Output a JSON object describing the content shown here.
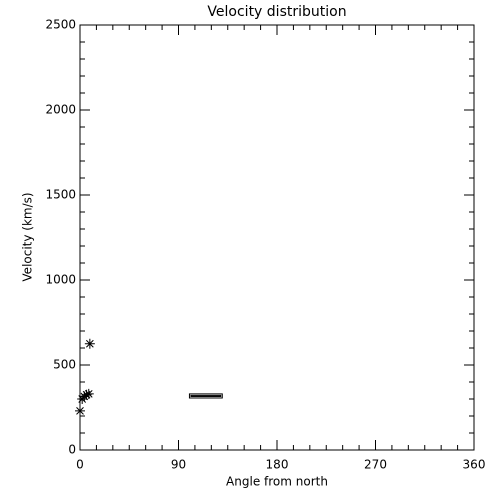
{
  "chart_data": {
    "type": "scatter",
    "title": "Velocity distribution",
    "x_label": "Angle from north",
    "y_label": "Velocity (km/s)",
    "x": [
      0,
      2,
      4,
      6,
      8,
      9
    ],
    "values": [
      230,
      300,
      315,
      325,
      330,
      625
    ],
    "marker": "asterisk",
    "color": "#000000",
    "box": {
      "x": [
        100,
        130
      ],
      "y": [
        306,
        330
      ]
    },
    "xlim": [
      0,
      360
    ],
    "xticks": [
      0,
      90,
      180,
      270,
      360
    ],
    "ylim": [
      0,
      2500
    ],
    "yticks": [
      0,
      500,
      1000,
      1500,
      2000,
      2500
    ],
    "minor_divisions": {
      "x": 6,
      "y": 5
    }
  }
}
